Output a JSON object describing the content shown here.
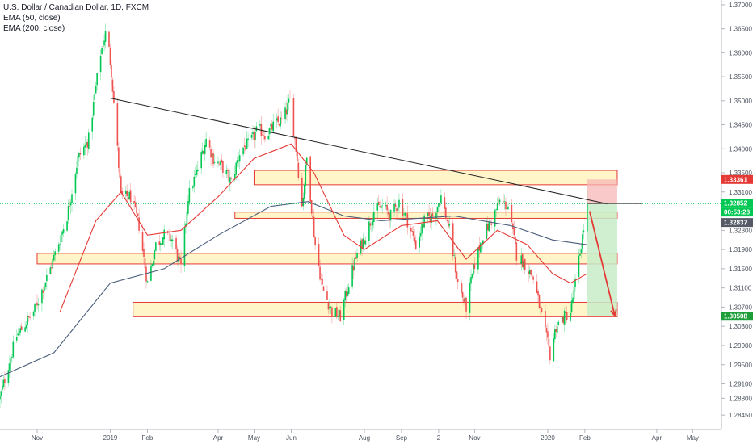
{
  "legend": {
    "symbol": "U.S. Dollar / Canadian Dollar, 1D, FXCM",
    "ema50": "EMA (50, close)",
    "ema200": "EMA (200, close)"
  },
  "colors": {
    "up": "#26a69a",
    "up_bright": "#00c853",
    "down": "#ef5350",
    "ema50": "#e53935",
    "ema200": "#4a5d7a",
    "trendline": "#222222",
    "zone_fill": "#fff5c8",
    "zone_border": "#e53935",
    "stop_zone": "#f7b6b6",
    "target_zone": "#c8ecc8",
    "arrow": "#e53935",
    "current_line": "#00c853"
  },
  "chart_data": {
    "type": "candlestick",
    "title": "U.S. Dollar / Canadian Dollar, 1D, FXCM",
    "xlabel": "",
    "ylabel": "",
    "ylim": [
      1.2815,
      1.371
    ],
    "y_ticks": [
      "1.37000",
      "1.36500",
      "1.36000",
      "1.35500",
      "1.35000",
      "1.34500",
      "1.34000",
      "1.33500",
      "1.33100",
      "1.32700",
      "1.32300",
      "1.31900",
      "1.31500",
      "1.31100",
      "1.30700",
      "1.30300",
      "1.29900",
      "1.29500",
      "1.29100",
      "1.28800",
      "1.28450"
    ],
    "x_labels": [
      {
        "label": "Nov",
        "date": "2018-11-01"
      },
      {
        "label": "2019",
        "date": "2019-01-01"
      },
      {
        "label": "Feb",
        "date": "2019-02-01"
      },
      {
        "label": "Apr",
        "date": "2019-04-01"
      },
      {
        "label": "May",
        "date": "2019-05-01"
      },
      {
        "label": "Jun",
        "date": "2019-06-01"
      },
      {
        "label": "Aug",
        "date": "2019-08-01"
      },
      {
        "label": "Sep",
        "date": "2019-09-01"
      },
      {
        "label": "2",
        "date": "2019-10-02"
      },
      {
        "label": "Nov",
        "date": "2019-11-01"
      },
      {
        "label": "2020",
        "date": "2020-01-01"
      },
      {
        "label": "Feb",
        "date": "2020-02-01"
      },
      {
        "label": "Apr",
        "date": "2020-04-01"
      },
      {
        "label": "May",
        "date": "2020-05-01"
      }
    ],
    "close_path": [
      [
        "2018-10-01",
        1.288
      ],
      [
        "2018-10-08",
        1.295
      ],
      [
        "2018-10-15",
        1.301
      ],
      [
        "2018-10-29",
        1.306
      ],
      [
        "2018-11-12",
        1.315
      ],
      [
        "2018-11-26",
        1.326
      ],
      [
        "2018-12-05",
        1.338
      ],
      [
        "2018-12-14",
        1.342
      ],
      [
        "2018-12-24",
        1.36
      ],
      [
        "2018-12-29",
        1.365
      ],
      [
        "2019-01-02",
        1.356
      ],
      [
        "2019-01-10",
        1.33
      ],
      [
        "2019-01-18",
        1.33
      ],
      [
        "2019-01-25",
        1.324
      ],
      [
        "2019-02-01",
        1.312
      ],
      [
        "2019-02-08",
        1.32
      ],
      [
        "2019-02-15",
        1.322
      ],
      [
        "2019-02-22",
        1.321
      ],
      [
        "2019-03-01",
        1.315
      ],
      [
        "2019-03-07",
        1.33
      ],
      [
        "2019-03-14",
        1.335
      ],
      [
        "2019-03-22",
        1.342
      ],
      [
        "2019-03-28",
        1.338
      ],
      [
        "2019-04-05",
        1.336
      ],
      [
        "2019-04-12",
        1.333
      ],
      [
        "2019-04-20",
        1.34
      ],
      [
        "2019-04-27",
        1.341
      ],
      [
        "2019-05-04",
        1.344
      ],
      [
        "2019-05-11",
        1.343
      ],
      [
        "2019-05-18",
        1.345
      ],
      [
        "2019-05-25",
        1.346
      ],
      [
        "2019-05-31",
        1.35
      ],
      [
        "2019-06-05",
        1.34
      ],
      [
        "2019-06-10",
        1.328
      ],
      [
        "2019-06-14",
        1.338
      ],
      [
        "2019-06-21",
        1.32
      ],
      [
        "2019-06-27",
        1.311
      ],
      [
        "2019-07-05",
        1.306
      ],
      [
        "2019-07-12",
        1.305
      ],
      [
        "2019-07-19",
        1.312
      ],
      [
        "2019-07-26",
        1.318
      ],
      [
        "2019-08-02",
        1.322
      ],
      [
        "2019-08-09",
        1.327
      ],
      [
        "2019-08-16",
        1.328
      ],
      [
        "2019-08-23",
        1.326
      ],
      [
        "2019-08-30",
        1.329
      ],
      [
        "2019-09-06",
        1.325
      ],
      [
        "2019-09-13",
        1.32
      ],
      [
        "2019-09-20",
        1.325
      ],
      [
        "2019-09-27",
        1.326
      ],
      [
        "2019-10-04",
        1.33
      ],
      [
        "2019-10-11",
        1.323
      ],
      [
        "2019-10-18",
        1.312
      ],
      [
        "2019-10-25",
        1.307
      ],
      [
        "2019-11-01",
        1.316
      ],
      [
        "2019-11-08",
        1.322
      ],
      [
        "2019-11-15",
        1.325
      ],
      [
        "2019-11-22",
        1.329
      ],
      [
        "2019-11-29",
        1.328
      ],
      [
        "2019-12-06",
        1.318
      ],
      [
        "2019-12-13",
        1.316
      ],
      [
        "2019-12-20",
        1.313
      ],
      [
        "2019-12-27",
        1.305
      ],
      [
        "2020-01-03",
        1.297
      ],
      [
        "2020-01-08",
        1.303
      ],
      [
        "2020-01-15",
        1.305
      ],
      [
        "2020-01-20",
        1.306
      ],
      [
        "2020-01-24",
        1.312
      ],
      [
        "2020-01-29",
        1.32
      ],
      [
        "2020-02-03",
        1.3285
      ]
    ],
    "ema50": [
      [
        "2018-11-20",
        1.306
      ],
      [
        "2018-12-20",
        1.325
      ],
      [
        "2019-01-10",
        1.331
      ],
      [
        "2019-02-01",
        1.322
      ],
      [
        "2019-03-01",
        1.323
      ],
      [
        "2019-04-01",
        1.33
      ],
      [
        "2019-05-01",
        1.338
      ],
      [
        "2019-06-01",
        1.341
      ],
      [
        "2019-06-20",
        1.335
      ],
      [
        "2019-07-15",
        1.322
      ],
      [
        "2019-08-01",
        1.319
      ],
      [
        "2019-09-01",
        1.324
      ],
      [
        "2019-10-01",
        1.325
      ],
      [
        "2019-10-25",
        1.317
      ],
      [
        "2019-11-20",
        1.323
      ],
      [
        "2019-12-15",
        1.32
      ],
      [
        "2020-01-05",
        1.314
      ],
      [
        "2020-01-20",
        1.312
      ],
      [
        "2020-02-03",
        1.314
      ]
    ],
    "ema200": [
      [
        "2018-10-01",
        1.2925
      ],
      [
        "2018-11-15",
        1.2975
      ],
      [
        "2019-01-01",
        1.312
      ],
      [
        "2019-02-15",
        1.315
      ],
      [
        "2019-04-01",
        1.322
      ],
      [
        "2019-05-15",
        1.328
      ],
      [
        "2019-06-15",
        1.329
      ],
      [
        "2019-07-15",
        1.326
      ],
      [
        "2019-08-15",
        1.325
      ],
      [
        "2019-10-15",
        1.326
      ],
      [
        "2019-12-01",
        1.324
      ],
      [
        "2020-01-05",
        1.321
      ],
      [
        "2020-02-03",
        1.32
      ]
    ],
    "trendline": [
      [
        "2019-01-02",
        1.3505
      ],
      [
        "2020-02-20",
        1.3285
      ]
    ],
    "zones": [
      {
        "from": "2019-05-01",
        "to": "2020-02-28",
        "high": 1.3355,
        "low": 1.3325
      },
      {
        "from": "2019-04-15",
        "to": "2020-02-28",
        "high": 1.3268,
        "low": 1.3255
      },
      {
        "from": "2018-11-01",
        "to": "2020-02-28",
        "high": 1.3182,
        "low": 1.316
      },
      {
        "from": "2019-01-20",
        "to": "2020-02-28",
        "high": 1.308,
        "low": 1.305
      }
    ],
    "trade": {
      "from": "2020-02-03",
      "to": "2020-02-28",
      "entry": 1.3285,
      "stop": 1.3336,
      "target": 1.3051
    },
    "arrow": [
      [
        "2020-02-05",
        1.327
      ],
      [
        "2020-02-26",
        1.3052
      ]
    ],
    "price_labels": {
      "stop": "1.33361",
      "current": "1.32852",
      "countdown": "00:53:28",
      "prev": "1.32837",
      "target": "1.30508"
    }
  }
}
